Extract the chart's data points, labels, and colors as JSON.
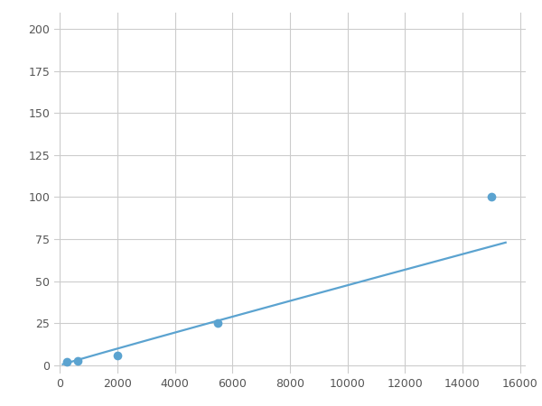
{
  "x": [
    250,
    625,
    2000,
    5500,
    15000
  ],
  "y": [
    2,
    2.5,
    6,
    25,
    100
  ],
  "line_color": "#5ba3d0",
  "marker_color": "#5ba3d0",
  "marker_size": 7,
  "line_width": 1.6,
  "xlim": [
    -200,
    16200
  ],
  "ylim": [
    -5,
    210
  ],
  "xticks": [
    0,
    2000,
    4000,
    6000,
    8000,
    10000,
    12000,
    14000,
    16000
  ],
  "yticks": [
    0,
    25,
    50,
    75,
    100,
    125,
    150,
    175,
    200
  ],
  "grid_color": "#cccccc",
  "background_color": "#ffffff",
  "fig_background": "#ffffff"
}
